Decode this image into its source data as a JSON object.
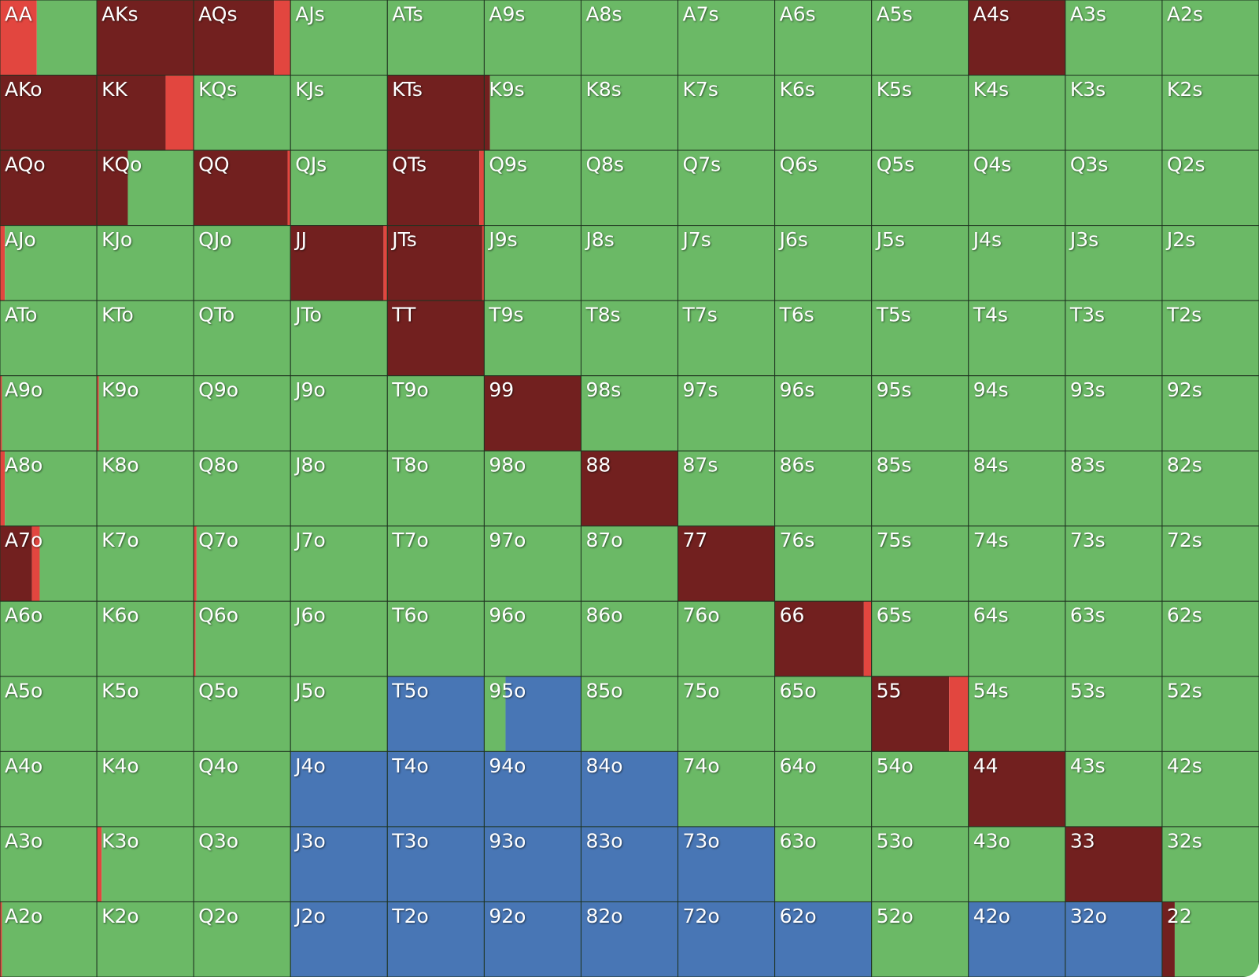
{
  "table": {
    "palette": [
      "#72201f",
      "#e2463f",
      "#6bb966",
      "#4876b5"
    ],
    "labels": [
      [
        "AA",
        "AKs",
        "AQs",
        "AJs",
        "ATs",
        "A9s",
        "A8s",
        "A7s",
        "A6s",
        "A5s",
        "A4s",
        "A3s",
        "A2s"
      ],
      [
        "AKo",
        "KK",
        "KQs",
        "KJs",
        "KTs",
        "K9s",
        "K8s",
        "K7s",
        "K6s",
        "K5s",
        "K4s",
        "K3s",
        "K2s"
      ],
      [
        "AQo",
        "KQo",
        "QQ",
        "QJs",
        "QTs",
        "Q9s",
        "Q8s",
        "Q7s",
        "Q6s",
        "Q5s",
        "Q4s",
        "Q3s",
        "Q2s"
      ],
      [
        "AJo",
        "KJo",
        "QJo",
        "JJ",
        "JTs",
        "J9s",
        "J8s",
        "J7s",
        "J6s",
        "J5s",
        "J4s",
        "J3s",
        "J2s"
      ],
      [
        "ATo",
        "KTo",
        "QTo",
        "JTo",
        "TT",
        "T9s",
        "T8s",
        "T7s",
        "T6s",
        "T5s",
        "T4s",
        "T3s",
        "T2s"
      ],
      [
        "A9o",
        "K9o",
        "Q9o",
        "J9o",
        "T9o",
        "99",
        "98s",
        "97s",
        "96s",
        "95s",
        "94s",
        "93s",
        "92s"
      ],
      [
        "A8o",
        "K8o",
        "Q8o",
        "J8o",
        "T8o",
        "98o",
        "88",
        "87s",
        "86s",
        "85s",
        "84s",
        "83s",
        "82s"
      ],
      [
        "A7o",
        "K7o",
        "Q7o",
        "J7o",
        "T7o",
        "97o",
        "87o",
        "77",
        "76s",
        "75s",
        "74s",
        "73s",
        "72s"
      ],
      [
        "A6o",
        "K6o",
        "Q6o",
        "J6o",
        "T6o",
        "96o",
        "86o",
        "76o",
        "66",
        "65s",
        "64s",
        "63s",
        "62s"
      ],
      [
        "A5o",
        "K5o",
        "Q5o",
        "J5o",
        "T5o",
        "95o",
        "85o",
        "75o",
        "65o",
        "55",
        "54s",
        "53s",
        "52s"
      ],
      [
        "A4o",
        "K4o",
        "Q4o",
        "J4o",
        "T4o",
        "94o",
        "84o",
        "74o",
        "64o",
        "54o",
        "44",
        "43s",
        "42s"
      ],
      [
        "A3o",
        "K3o",
        "Q3o",
        "J3o",
        "T3o",
        "93o",
        "83o",
        "73o",
        "63o",
        "53o",
        "43o",
        "33",
        "32s"
      ],
      [
        "A2o",
        "K2o",
        "Q2o",
        "J2o",
        "T2o",
        "92o",
        "82o",
        "72o",
        "62o",
        "52o",
        "42o",
        "32o",
        "22"
      ]
    ],
    "mix": [
      [
        [
          0,
          38,
          62,
          0
        ],
        [
          100,
          0,
          0,
          0
        ],
        [
          83,
          17,
          0,
          0
        ],
        [
          0,
          0,
          100,
          0
        ],
        [
          0,
          0,
          100,
          0
        ],
        [
          0,
          0,
          100,
          0
        ],
        [
          0,
          0,
          100,
          0
        ],
        [
          0,
          0,
          100,
          0
        ],
        [
          0,
          0,
          100,
          0
        ],
        [
          0,
          0,
          100,
          0
        ],
        [
          100,
          0,
          0,
          0
        ],
        [
          0,
          0,
          100,
          0
        ],
        [
          0,
          0,
          100,
          0
        ]
      ],
      [
        [
          100,
          0,
          0,
          0
        ],
        [
          71,
          29,
          0,
          0
        ],
        [
          0,
          0,
          100,
          0
        ],
        [
          0,
          0,
          100,
          0
        ],
        [
          100,
          0,
          0,
          0
        ],
        [
          6,
          0,
          94,
          0
        ],
        [
          0,
          0,
          100,
          0
        ],
        [
          0,
          0,
          100,
          0
        ],
        [
          0,
          0,
          100,
          0
        ],
        [
          0,
          0,
          100,
          0
        ],
        [
          0,
          0,
          100,
          0
        ],
        [
          0,
          0,
          100,
          0
        ],
        [
          0,
          0,
          100,
          0
        ]
      ],
      [
        [
          100,
          0,
          0,
          0
        ],
        [
          32,
          0,
          68,
          0
        ],
        [
          97,
          3,
          0,
          0
        ],
        [
          0,
          0,
          100,
          0
        ],
        [
          95,
          5,
          0,
          0
        ],
        [
          0,
          0,
          100,
          0
        ],
        [
          0,
          0,
          100,
          0
        ],
        [
          0,
          0,
          100,
          0
        ],
        [
          0,
          0,
          100,
          0
        ],
        [
          0,
          0,
          100,
          0
        ],
        [
          0,
          0,
          100,
          0
        ],
        [
          0,
          0,
          100,
          0
        ],
        [
          0,
          0,
          100,
          0
        ]
      ],
      [
        [
          0,
          5,
          95,
          0
        ],
        [
          0,
          0,
          100,
          0
        ],
        [
          0,
          0,
          100,
          0
        ],
        [
          96,
          4,
          0,
          0
        ],
        [
          98,
          2,
          0,
          0
        ],
        [
          0,
          0,
          100,
          0
        ],
        [
          0,
          0,
          100,
          0
        ],
        [
          0,
          0,
          100,
          0
        ],
        [
          0,
          0,
          100,
          0
        ],
        [
          0,
          0,
          100,
          0
        ],
        [
          0,
          0,
          100,
          0
        ],
        [
          0,
          0,
          100,
          0
        ],
        [
          0,
          0,
          100,
          0
        ]
      ],
      [
        [
          0,
          0,
          100,
          0
        ],
        [
          0,
          0,
          100,
          0
        ],
        [
          0,
          0,
          100,
          0
        ],
        [
          0,
          0,
          100,
          0
        ],
        [
          100,
          0,
          0,
          0
        ],
        [
          0,
          0,
          100,
          0
        ],
        [
          0,
          0,
          100,
          0
        ],
        [
          0,
          0,
          100,
          0
        ],
        [
          0,
          0,
          100,
          0
        ],
        [
          0,
          0,
          100,
          0
        ],
        [
          0,
          0,
          100,
          0
        ],
        [
          0,
          0,
          100,
          0
        ],
        [
          0,
          0,
          100,
          0
        ]
      ],
      [
        [
          0,
          2,
          98,
          0
        ],
        [
          0,
          2,
          98,
          0
        ],
        [
          0,
          0,
          100,
          0
        ],
        [
          0,
          0,
          100,
          0
        ],
        [
          0,
          0,
          100,
          0
        ],
        [
          100,
          0,
          0,
          0
        ],
        [
          0,
          0,
          100,
          0
        ],
        [
          0,
          0,
          100,
          0
        ],
        [
          0,
          0,
          100,
          0
        ],
        [
          0,
          0,
          100,
          0
        ],
        [
          0,
          0,
          100,
          0
        ],
        [
          0,
          0,
          100,
          0
        ],
        [
          0,
          0,
          100,
          0
        ]
      ],
      [
        [
          0,
          5,
          95,
          0
        ],
        [
          0,
          0,
          100,
          0
        ],
        [
          0,
          0,
          100,
          0
        ],
        [
          0,
          0,
          100,
          0
        ],
        [
          0,
          0,
          100,
          0
        ],
        [
          0,
          0,
          100,
          0
        ],
        [
          100,
          0,
          0,
          0
        ],
        [
          0,
          0,
          100,
          0
        ],
        [
          0,
          0,
          100,
          0
        ],
        [
          0,
          0,
          100,
          0
        ],
        [
          0,
          0,
          100,
          0
        ],
        [
          0,
          0,
          100,
          0
        ],
        [
          0,
          0,
          100,
          0
        ]
      ],
      [
        [
          33,
          8,
          59,
          0
        ],
        [
          0,
          0,
          100,
          0
        ],
        [
          0,
          3,
          97,
          0
        ],
        [
          0,
          0,
          100,
          0
        ],
        [
          0,
          0,
          100,
          0
        ],
        [
          0,
          0,
          100,
          0
        ],
        [
          0,
          0,
          100,
          0
        ],
        [
          100,
          0,
          0,
          0
        ],
        [
          0,
          0,
          100,
          0
        ],
        [
          0,
          0,
          100,
          0
        ],
        [
          0,
          0,
          100,
          0
        ],
        [
          0,
          0,
          100,
          0
        ],
        [
          0,
          0,
          100,
          0
        ]
      ],
      [
        [
          0,
          0,
          100,
          0
        ],
        [
          0,
          0,
          100,
          0
        ],
        [
          0,
          2,
          98,
          0
        ],
        [
          0,
          0,
          100,
          0
        ],
        [
          0,
          0,
          100,
          0
        ],
        [
          0,
          0,
          100,
          0
        ],
        [
          0,
          0,
          100,
          0
        ],
        [
          0,
          0,
          100,
          0
        ],
        [
          92,
          8,
          0,
          0
        ],
        [
          0,
          0,
          100,
          0
        ],
        [
          0,
          0,
          100,
          0
        ],
        [
          0,
          0,
          100,
          0
        ],
        [
          0,
          0,
          100,
          0
        ]
      ],
      [
        [
          0,
          0,
          100,
          0
        ],
        [
          0,
          0,
          100,
          0
        ],
        [
          0,
          0,
          100,
          0
        ],
        [
          0,
          0,
          100,
          0
        ],
        [
          0,
          0,
          0,
          100
        ],
        [
          0,
          0,
          22,
          78
        ],
        [
          0,
          0,
          100,
          0
        ],
        [
          0,
          0,
          100,
          0
        ],
        [
          0,
          0,
          100,
          0
        ],
        [
          80,
          20,
          0,
          0
        ],
        [
          0,
          0,
          100,
          0
        ],
        [
          0,
          0,
          100,
          0
        ],
        [
          0,
          0,
          100,
          0
        ]
      ],
      [
        [
          0,
          0,
          100,
          0
        ],
        [
          0,
          0,
          100,
          0
        ],
        [
          0,
          0,
          100,
          0
        ],
        [
          0,
          0,
          0,
          100
        ],
        [
          0,
          0,
          0,
          100
        ],
        [
          0,
          0,
          0,
          100
        ],
        [
          0,
          0,
          0,
          100
        ],
        [
          0,
          0,
          100,
          0
        ],
        [
          0,
          0,
          100,
          0
        ],
        [
          0,
          0,
          100,
          0
        ],
        [
          100,
          0,
          0,
          0
        ],
        [
          0,
          0,
          100,
          0
        ],
        [
          0,
          0,
          100,
          0
        ]
      ],
      [
        [
          0,
          0,
          100,
          0
        ],
        [
          0,
          5,
          95,
          0
        ],
        [
          0,
          0,
          100,
          0
        ],
        [
          0,
          0,
          0,
          100
        ],
        [
          0,
          0,
          0,
          100
        ],
        [
          0,
          0,
          0,
          100
        ],
        [
          0,
          0,
          0,
          100
        ],
        [
          0,
          0,
          0,
          100
        ],
        [
          0,
          0,
          100,
          0
        ],
        [
          0,
          0,
          100,
          0
        ],
        [
          0,
          0,
          100,
          0
        ],
        [
          100,
          0,
          0,
          0
        ],
        [
          0,
          0,
          100,
          0
        ]
      ],
      [
        [
          0,
          2,
          98,
          0
        ],
        [
          0,
          0,
          100,
          0
        ],
        [
          0,
          0,
          100,
          0
        ],
        [
          0,
          0,
          0,
          100
        ],
        [
          0,
          0,
          0,
          100
        ],
        [
          0,
          0,
          0,
          100
        ],
        [
          0,
          0,
          0,
          100
        ],
        [
          0,
          0,
          0,
          100
        ],
        [
          0,
          0,
          0,
          100
        ],
        [
          0,
          0,
          100,
          0
        ],
        [
          0,
          0,
          0,
          100
        ],
        [
          0,
          0,
          0,
          100
        ],
        [
          13,
          0,
          87,
          0
        ]
      ]
    ]
  }
}
